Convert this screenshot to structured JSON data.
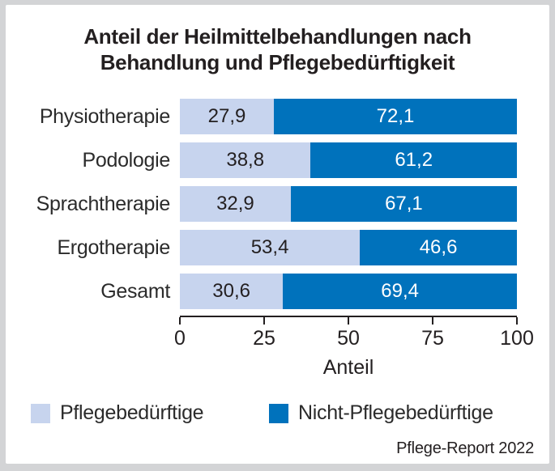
{
  "frame": {
    "background_color": "#d3d4d6",
    "card_background_color": "#ffffff"
  },
  "chart_data": {
    "type": "bar",
    "orientation": "horizontal",
    "stacked": true,
    "grid": false,
    "title": "Anteil der Heilmittelbehandlungen nach\nBehandlung und Pflegebedürftigkeit",
    "categories": [
      "Physiotherapie",
      "Podologie",
      "Sprachtherapie",
      "Ergotherapie",
      "Gesamt"
    ],
    "series": [
      {
        "name": "Pflegebedürftige",
        "color": "#c7d4ee",
        "label_color": "#231f20",
        "values": [
          27.9,
          38.8,
          32.9,
          53.4,
          30.6
        ],
        "labels": [
          "27,9",
          "38,8",
          "32,9",
          "53,4",
          "30,6"
        ]
      },
      {
        "name": "Nicht-Pflegebedürftige",
        "color": "#0072bc",
        "label_color": "#ffffff",
        "values": [
          72.1,
          61.2,
          67.1,
          46.6,
          69.4
        ],
        "labels": [
          "72,1",
          "61,2",
          "67,1",
          "46,6",
          "69,4"
        ]
      }
    ],
    "xlabel": "Anteil",
    "xlim": [
      0,
      100
    ],
    "xticks": [
      "0",
      "25",
      "50",
      "75",
      "100"
    ],
    "xtick_values": [
      0,
      25,
      50,
      75,
      100
    ],
    "legend_position": "bottom",
    "value_label_format": "decimal-comma",
    "source": "Pflege-Report 2022"
  }
}
